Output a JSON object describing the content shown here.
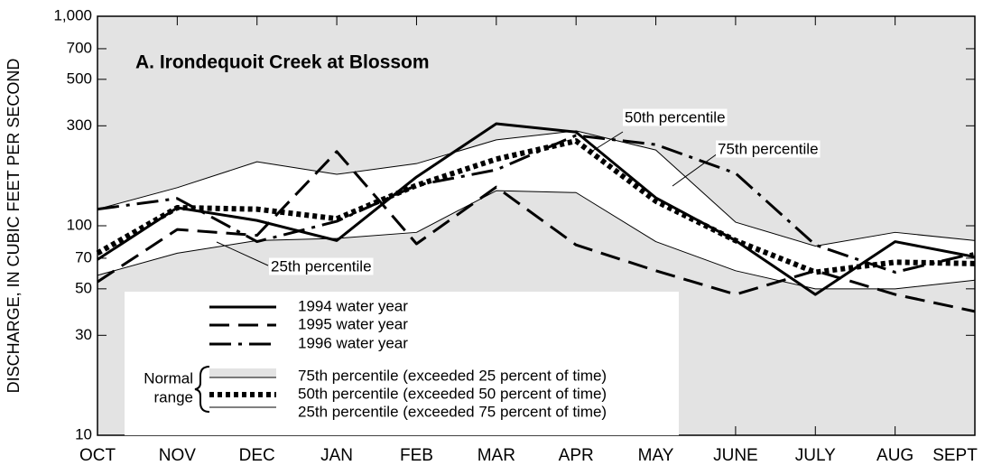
{
  "chart_data": {
    "type": "line",
    "title": "A. Irondequoit Creek at Blossom",
    "y_label": "DISCHARGE, IN CUBIC FEET PER SECOND",
    "categories": [
      "OCT",
      "NOV",
      "DEC",
      "JAN",
      "FEB",
      "MAR",
      "APR",
      "MAY",
      "JUNE",
      "JULY",
      "AUG",
      "SEPT"
    ],
    "y_scale": "log",
    "ylim": [
      10,
      1000
    ],
    "yticks": [
      10,
      30,
      50,
      70,
      100,
      300,
      500,
      700,
      {
        "value": 1000,
        "label": "1,000"
      }
    ],
    "series": [
      {
        "name": "1994 water year",
        "color": "#000000",
        "line_style": "solid",
        "values": [
          69,
          122,
          106,
          85,
          171,
          307,
          280,
          136,
          85,
          47,
          84,
          71
        ]
      },
      {
        "name": "1995 water year",
        "color": "#000000",
        "line_style": "dashed",
        "values": [
          54,
          96,
          90,
          226,
          82,
          153,
          81,
          61,
          47,
          61,
          47,
          39
        ]
      },
      {
        "name": "1996 water year",
        "color": "#000000",
        "line_style": "dashdot",
        "values": [
          120,
          135,
          84,
          105,
          156,
          185,
          270,
          244,
          178,
          81,
          60,
          74
        ]
      },
      {
        "name": "75th percentile (exceeded 25 percent of time)",
        "color": "#000000",
        "line_style": "thin",
        "values": [
          120,
          152,
          202,
          176,
          198,
          257,
          284,
          230,
          104,
          80,
          93,
          85
        ]
      },
      {
        "name": "50th percentile (exceeded 50 percent of time)",
        "color": "#000000",
        "line_style": "dotted",
        "values": [
          74,
          122,
          120,
          108,
          156,
          208,
          254,
          131,
          85,
          60,
          67,
          66
        ]
      },
      {
        "name": "25th percentile (exceeded 75 percent of time)",
        "color": "#000000",
        "line_style": "thin",
        "values": [
          58,
          74,
          85,
          87,
          93,
          147,
          144,
          84,
          61,
          50,
          50,
          55
        ]
      }
    ],
    "normal_range_label": [
      "Normal",
      "range"
    ],
    "background_color": "#e3e3e3",
    "band_color": "#ffffff",
    "annotations": [
      "50th percentile",
      "75th percentile",
      "25th percentile"
    ]
  }
}
